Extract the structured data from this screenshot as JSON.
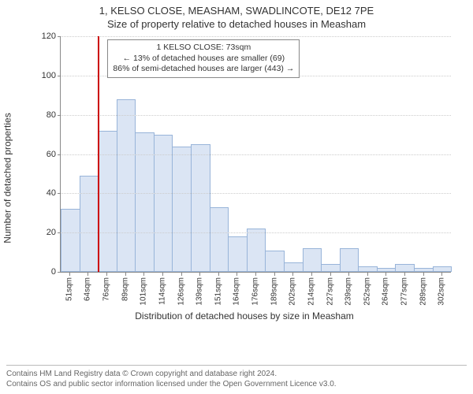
{
  "title": {
    "line1": "1, KELSO CLOSE, MEASHAM, SWADLINCOTE, DE12 7PE",
    "line2": "Size of property relative to detached houses in Measham"
  },
  "chart": {
    "type": "histogram",
    "y_label": "Number of detached properties",
    "x_axis_title": "Distribution of detached houses by size in Measham",
    "ylim": [
      0,
      120
    ],
    "ytick_step": 20,
    "yticks": [
      0,
      20,
      40,
      60,
      80,
      100,
      120
    ],
    "background_color": "#ffffff",
    "grid_color": "#cccccc",
    "axis_color": "#888888",
    "bar_fill": "#dbe5f4",
    "bar_border": "#98b4d9",
    "marker_color": "#cc0000",
    "title_fontsize": 13,
    "label_fontsize": 12,
    "tick_fontsize": 11,
    "bins": [
      {
        "label": "51sqm",
        "value": 32
      },
      {
        "label": "64sqm",
        "value": 49
      },
      {
        "label": "76sqm",
        "value": 72
      },
      {
        "label": "89sqm",
        "value": 88
      },
      {
        "label": "101sqm",
        "value": 71
      },
      {
        "label": "114sqm",
        "value": 70
      },
      {
        "label": "126sqm",
        "value": 64
      },
      {
        "label": "139sqm",
        "value": 65
      },
      {
        "label": "151sqm",
        "value": 33
      },
      {
        "label": "164sqm",
        "value": 18
      },
      {
        "label": "176sqm",
        "value": 22
      },
      {
        "label": "189sqm",
        "value": 11
      },
      {
        "label": "202sqm",
        "value": 5
      },
      {
        "label": "214sqm",
        "value": 12
      },
      {
        "label": "227sqm",
        "value": 4
      },
      {
        "label": "239sqm",
        "value": 12
      },
      {
        "label": "252sqm",
        "value": 3
      },
      {
        "label": "264sqm",
        "value": 2
      },
      {
        "label": "277sqm",
        "value": 4
      },
      {
        "label": "289sqm",
        "value": 2
      },
      {
        "label": "302sqm",
        "value": 3
      }
    ],
    "marker": {
      "position_bin_boundary": 2,
      "annotation": {
        "line1": "1 KELSO CLOSE: 73sqm",
        "line2": "← 13% of detached houses are smaller (69)",
        "line3": "86% of semi-detached houses are larger (443) →"
      }
    }
  },
  "footer": {
    "line1": "Contains HM Land Registry data © Crown copyright and database right 2024.",
    "line2": "Contains OS and public sector information licensed under the Open Government Licence v3.0."
  }
}
